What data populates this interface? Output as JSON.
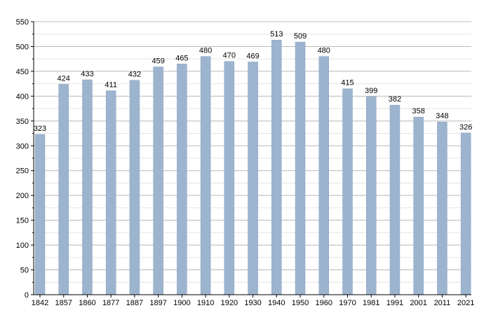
{
  "chart_data": {
    "type": "bar",
    "categories": [
      "1842",
      "1857",
      "1860",
      "1877",
      "1887",
      "1897",
      "1900",
      "1910",
      "1920",
      "1930",
      "1940",
      "1950",
      "1960",
      "1970",
      "1981",
      "1991",
      "2001",
      "2011",
      "2021"
    ],
    "values": [
      323,
      424,
      433,
      411,
      432,
      459,
      465,
      480,
      470,
      469,
      513,
      509,
      480,
      415,
      399,
      382,
      358,
      348,
      326
    ],
    "data_labels": [
      "323",
      "424",
      "433",
      "411",
      "432",
      "459",
      "465",
      "480",
      "470",
      "469",
      "513",
      "509",
      "480",
      "415",
      "399",
      "382",
      "358",
      "348",
      "326"
    ],
    "y_ticks": [
      "0",
      "50",
      "100",
      "150",
      "200",
      "250",
      "300",
      "350",
      "400",
      "450",
      "500",
      "550"
    ],
    "ylim": [
      0,
      550
    ],
    "grid": true,
    "colors": {
      "bar": "#9db4cf",
      "bar_edge": "#8aa3c0",
      "grid_major": "#b8b8b8",
      "grid_minor": "#e4e4e4",
      "axis": "#000000"
    }
  }
}
